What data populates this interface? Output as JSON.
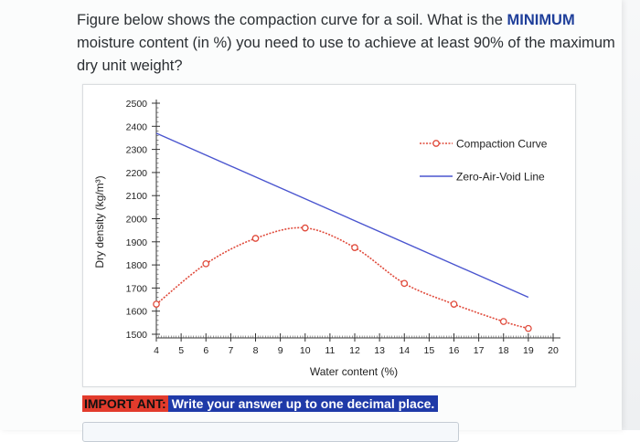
{
  "question": {
    "part1": "Figure below shows the compaction curve for a soil. What is the",
    "highlight": "MINIMUM",
    "part2": "moisture content (in %) you need to use to achieve at least 90% of the maximum dry unit weight?"
  },
  "notice": {
    "tag": "IMPORT ANT:",
    "message": "Write your answer up to one decimal place."
  },
  "answer_input": {
    "value": ""
  },
  "colors": {
    "compaction": "#e04b3c",
    "zero_air_void": "#4a55cf",
    "highlight_text": "#1f3f9a"
  },
  "chart_data": {
    "type": "line",
    "title": "",
    "xlabel": "Water content (%)",
    "ylabel": "Dry density (kg/m³)",
    "xlim": [
      4,
      20
    ],
    "ylim": [
      1500,
      2500
    ],
    "x_ticks": [
      4,
      5,
      6,
      7,
      8,
      9,
      10,
      11,
      12,
      13,
      14,
      15,
      16,
      17,
      18,
      19,
      20
    ],
    "y_ticks": [
      1500,
      1600,
      1700,
      1800,
      1900,
      2000,
      2100,
      2200,
      2300,
      2400,
      2500
    ],
    "grid": false,
    "legend_position": "top-right",
    "series": [
      {
        "name": "Compaction Curve",
        "style": "dashed-with-circle-markers",
        "points": [
          [
            4,
            1630
          ],
          [
            6,
            1805
          ],
          [
            8,
            1915
          ],
          [
            10,
            1960
          ],
          [
            12,
            1875
          ],
          [
            14,
            1720
          ],
          [
            16,
            1630
          ],
          [
            18,
            1555
          ],
          [
            19,
            1525
          ]
        ]
      },
      {
        "name": "Zero-Air-Void Line",
        "style": "solid",
        "points": [
          [
            4,
            2370
          ],
          [
            19,
            1660
          ]
        ]
      }
    ]
  }
}
